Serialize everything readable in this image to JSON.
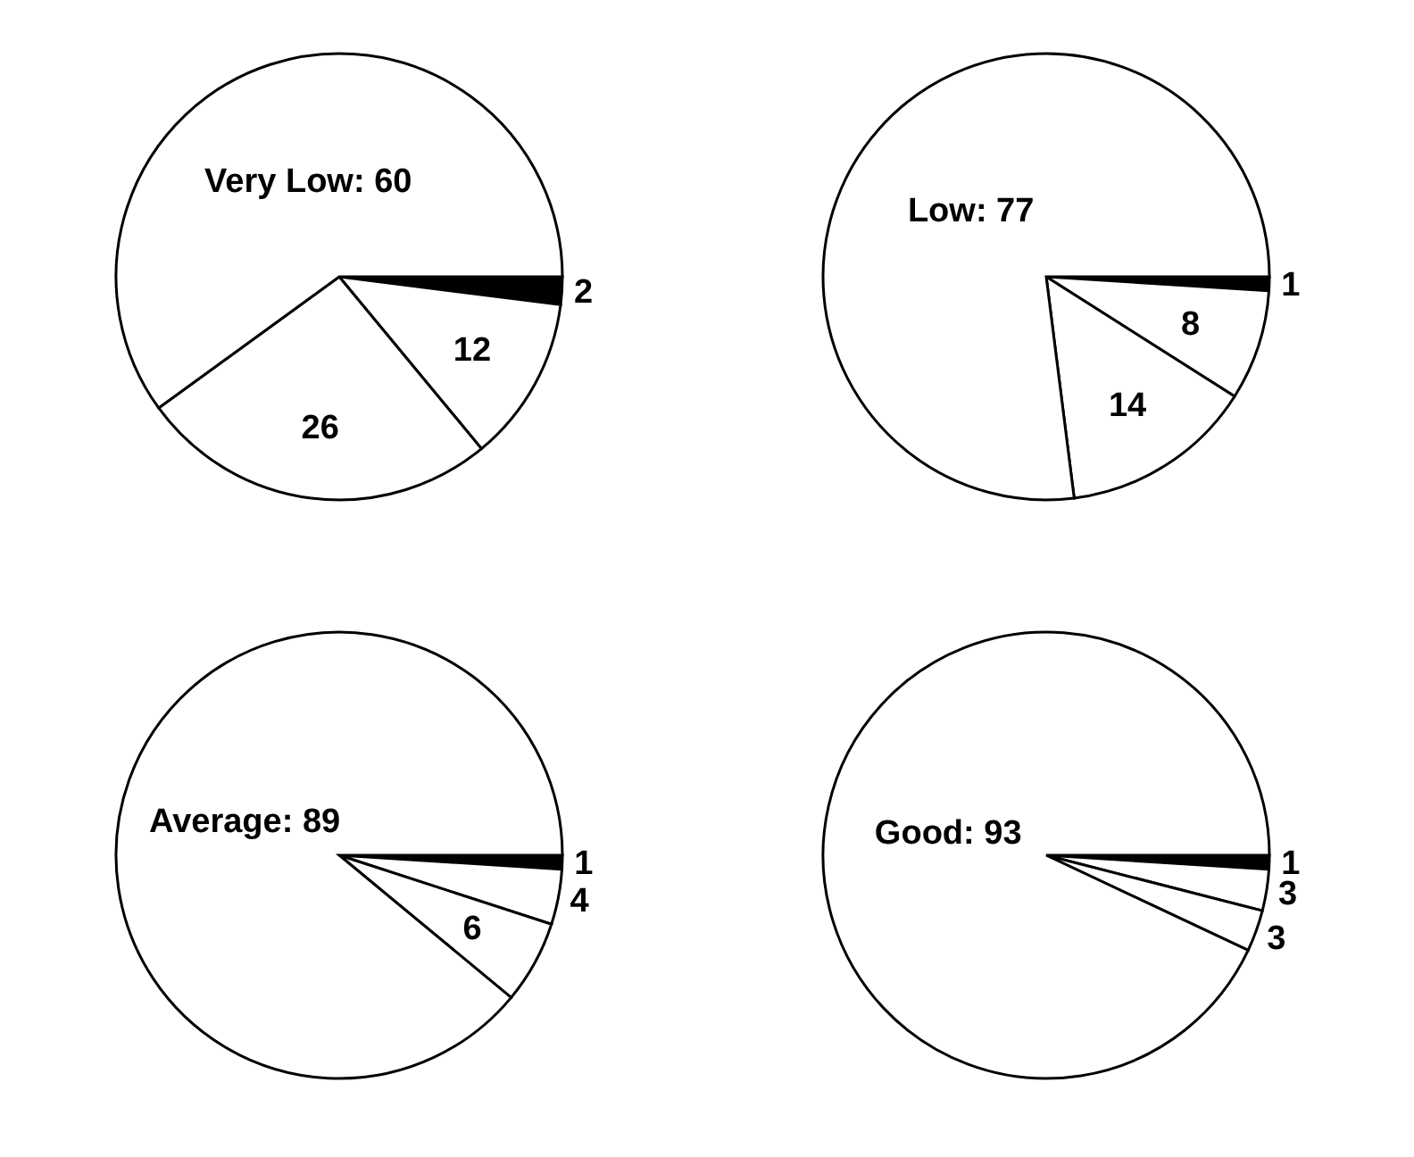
{
  "chart_data": [
    {
      "type": "pie",
      "categories": [
        null,
        null,
        null,
        null
      ],
      "values": [
        2,
        12,
        26,
        60
      ],
      "colors": [
        "#000000",
        "#ffffff",
        "#ffffff",
        "#ffffff"
      ],
      "value_labels": [
        "2",
        "12",
        "26",
        "Very Low: 60"
      ]
    },
    {
      "type": "pie",
      "categories": [
        null,
        null,
        null,
        null
      ],
      "values": [
        1,
        8,
        14,
        77
      ],
      "colors": [
        "#000000",
        "#ffffff",
        "#ffffff",
        "#ffffff"
      ],
      "value_labels": [
        "1",
        "8",
        "14",
        "Low: 77"
      ]
    },
    {
      "type": "pie",
      "categories": [
        null,
        null,
        null,
        null
      ],
      "values": [
        1,
        4,
        6,
        89
      ],
      "colors": [
        "#000000",
        "#ffffff",
        "#ffffff",
        "#ffffff"
      ],
      "value_labels": [
        "1",
        "4",
        "6",
        "Average: 89"
      ]
    },
    {
      "type": "pie",
      "categories": [
        null,
        null,
        null,
        null
      ],
      "values": [
        1,
        3,
        3,
        93
      ],
      "colors": [
        "#000000",
        "#ffffff",
        "#ffffff",
        "#ffffff"
      ],
      "value_labels": [
        "1",
        "3",
        "3",
        "Good: 93"
      ]
    }
  ]
}
